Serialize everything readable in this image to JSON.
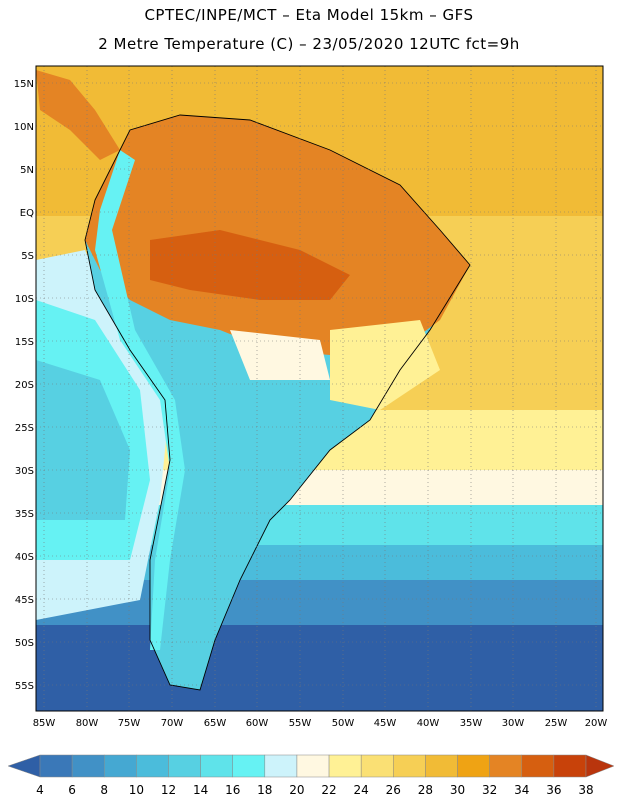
{
  "title": {
    "line1": "CPTEC/INPE/MCT –  Eta Model 15km – GFS",
    "line2": "2 Metre Temperature (C) – 23/05/2020 12UTC fct=9h"
  },
  "axes": {
    "lat_labels": [
      "15N",
      "10N",
      "5N",
      "EQ",
      "5S",
      "10S",
      "15S",
      "20S",
      "25S",
      "30S",
      "35S",
      "40S",
      "45S",
      "50S",
      "55S"
    ],
    "lon_labels": [
      "85W",
      "80W",
      "75W",
      "70W",
      "65W",
      "60W",
      "55W",
      "50W",
      "45W",
      "40W",
      "35W",
      "30W",
      "25W",
      "20W"
    ]
  },
  "colorbar": {
    "labels": [
      "4",
      "6",
      "8",
      "10",
      "12",
      "14",
      "16",
      "18",
      "20",
      "22",
      "24",
      "26",
      "28",
      "30",
      "32",
      "34",
      "36",
      "38"
    ],
    "colors": [
      "#2f5fa6",
      "#3a78b8",
      "#4191c6",
      "#45a8d2",
      "#4bbcdb",
      "#57d0e2",
      "#5fe3ea",
      "#66f2f3",
      "#cdf3fb",
      "#fff8e1",
      "#fff195",
      "#fae074",
      "#f6cf55",
      "#f1bb36",
      "#efa314",
      "#e48424",
      "#d65f10",
      "#c8420a",
      "#b9350d"
    ]
  },
  "map_colors": {
    "ocean_deep": "#2f5fa6",
    "ocean_mid": "#4191c6",
    "ocean_light": "#57d0e2",
    "warm_ocean": "#f6cf55",
    "hot_land": "#d65f10",
    "land_cool": "#57d0e2"
  }
}
